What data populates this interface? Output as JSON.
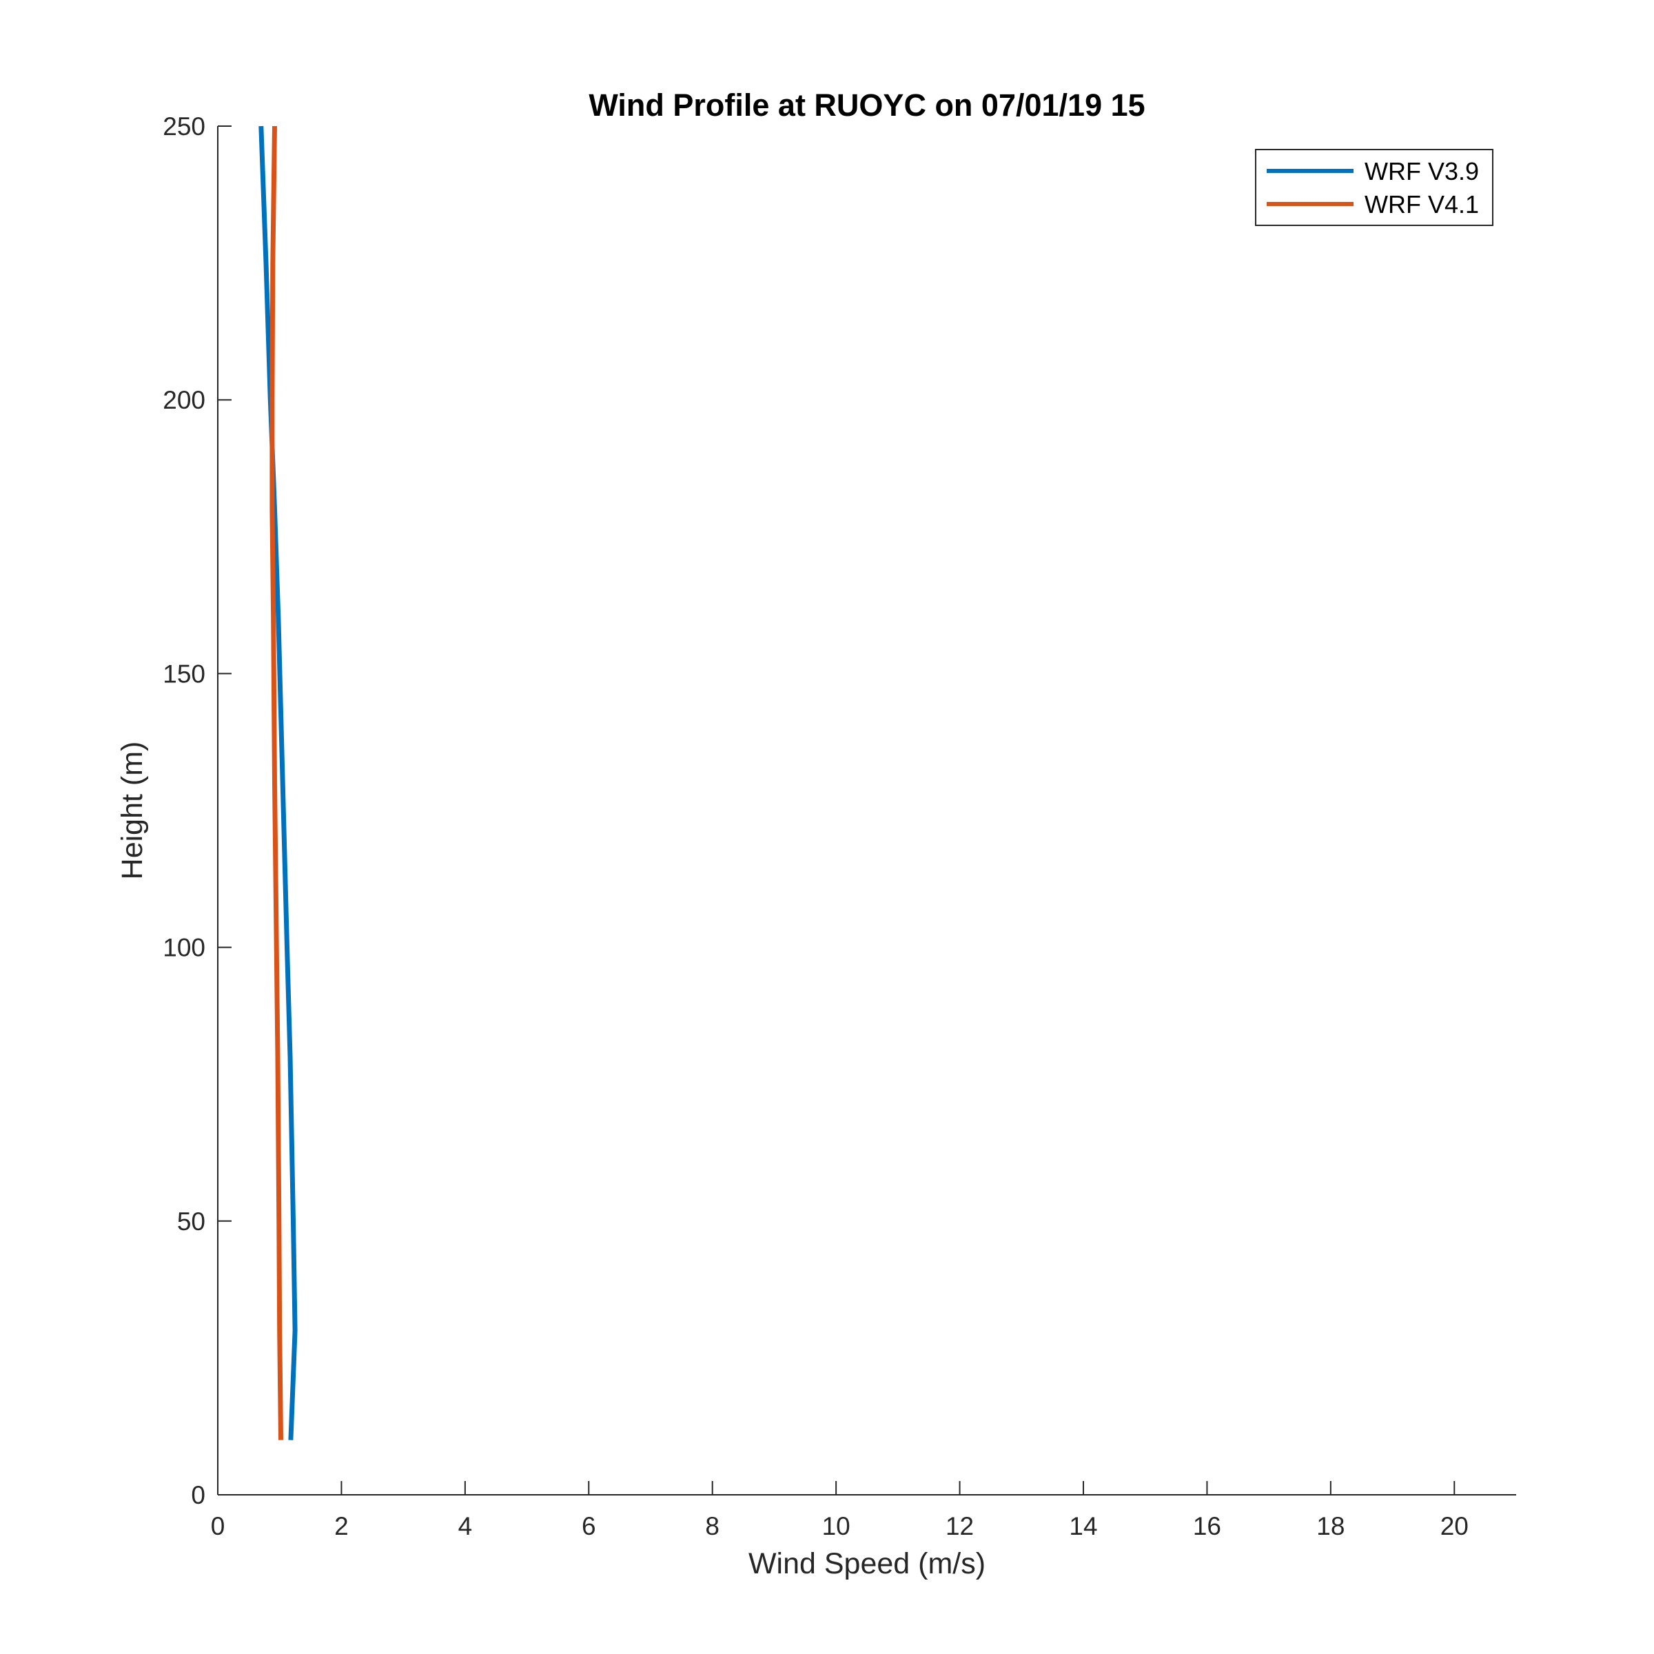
{
  "chart_data": {
    "type": "line",
    "title": "Wind Profile at RUOYC on 07/01/19 15",
    "xlabel": "Wind Speed (m/s)",
    "ylabel": "Height (m)",
    "xlim": [
      0,
      21
    ],
    "ylim": [
      0,
      250
    ],
    "xticks": [
      0,
      2,
      4,
      6,
      8,
      10,
      12,
      14,
      16,
      18,
      20
    ],
    "yticks": [
      0,
      50,
      100,
      150,
      200,
      250
    ],
    "grid": false,
    "legend_position": "top-right",
    "series": [
      {
        "name": "WRF V3.9",
        "color": "#0072BD",
        "points": [
          [
            1.18,
            10
          ],
          [
            1.25,
            30
          ],
          [
            1.22,
            50
          ],
          [
            1.17,
            80
          ],
          [
            1.12,
            100
          ],
          [
            1.05,
            130
          ],
          [
            0.98,
            160
          ],
          [
            0.92,
            180
          ],
          [
            0.85,
            200
          ],
          [
            0.78,
            225
          ],
          [
            0.7,
            250
          ]
        ]
      },
      {
        "name": "WRF V4.1",
        "color": "#D95319",
        "points": [
          [
            1.02,
            10
          ],
          [
            1.0,
            30
          ],
          [
            0.99,
            50
          ],
          [
            0.97,
            80
          ],
          [
            0.95,
            100
          ],
          [
            0.92,
            130
          ],
          [
            0.9,
            160
          ],
          [
            0.88,
            180
          ],
          [
            0.88,
            200
          ],
          [
            0.89,
            225
          ],
          [
            0.92,
            250
          ]
        ]
      }
    ]
  }
}
